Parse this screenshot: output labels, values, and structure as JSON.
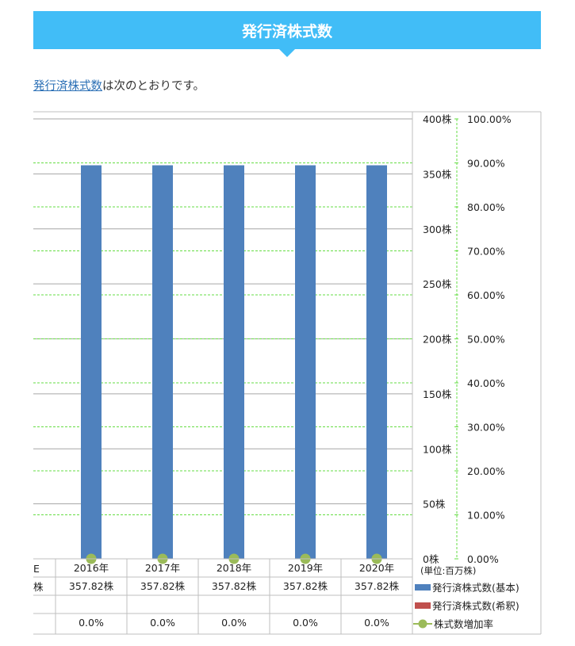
{
  "header": {
    "title": "発行済株式数"
  },
  "intro": {
    "link_text": "発行済株式数",
    "rest_text": "は次のとおりです。"
  },
  "chart_data": {
    "type": "bar",
    "categories": [
      "2016年",
      "2017年",
      "2018年",
      "2019年",
      "2020年"
    ],
    "series": [
      {
        "name": "発行済株式数(基本)",
        "type": "bar",
        "color": "#4f81bd",
        "values": [
          357.82,
          357.82,
          357.82,
          357.82,
          357.82
        ]
      },
      {
        "name": "発行済株式数(希釈)",
        "type": "bar",
        "color": "#c0504d",
        "values": [
          null,
          null,
          null,
          null,
          null
        ]
      },
      {
        "name": "株式数増加率",
        "type": "line",
        "axis": "secondary",
        "color": "#9bbb59",
        "values": [
          0.0,
          0.0,
          0.0,
          0.0,
          0.0
        ]
      }
    ],
    "y_ticks": [
      "0株",
      "50株",
      "100株",
      "150株",
      "200株",
      "250株",
      "300株",
      "350株",
      "400株"
    ],
    "y2_ticks": [
      "0.00%",
      "10.00%",
      "20.00%",
      "30.00%",
      "40.00%",
      "50.00%",
      "60.00%",
      "70.00%",
      "80.00%",
      "90.00%",
      "100.00%"
    ],
    "ylim": [
      0,
      400
    ],
    "y2lim": [
      0,
      100
    ],
    "unit_label": "(単位:百万株)",
    "table": {
      "cut_header": "E",
      "cut_row_label": "株",
      "row1": [
        "357.82株",
        "357.82株",
        "357.82株",
        "357.82株",
        "357.82株"
      ],
      "row2": [
        "",
        "",
        "",
        "",
        ""
      ],
      "row3": [
        "0.0%",
        "0.0%",
        "0.0%",
        "0.0%",
        "0.0%"
      ]
    },
    "grid": true,
    "legend_position": "bottom-right"
  }
}
